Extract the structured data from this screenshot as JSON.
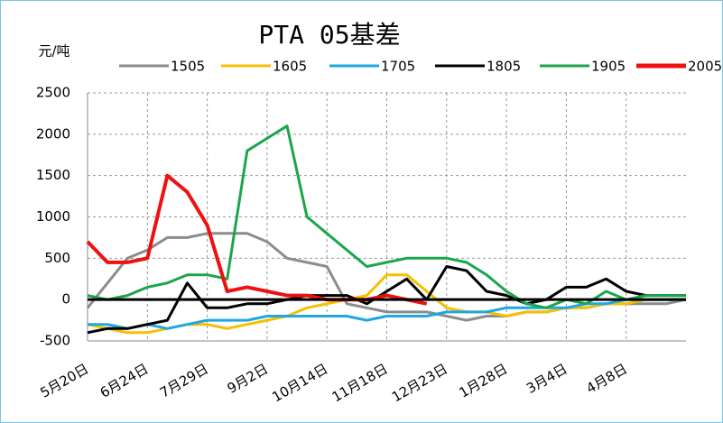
{
  "chart_data": {
    "type": "line",
    "title": "PTA 05基差",
    "y_label": "元/吨",
    "categories": [
      "5月20日",
      null,
      null,
      "6月24日",
      null,
      null,
      "7月29日",
      null,
      null,
      "9月2日",
      null,
      null,
      "10月14日",
      null,
      null,
      "11月18日",
      null,
      null,
      "12月23日",
      null,
      null,
      "1月28日",
      null,
      null,
      "3月4日",
      null,
      null,
      "4月8日",
      null,
      null,
      null
    ],
    "series": [
      {
        "name": "1505",
        "color": "#8c8c8c",
        "values": [
          -100,
          200,
          500,
          600,
          750,
          750,
          800,
          800,
          800,
          700,
          500,
          450,
          400,
          -50,
          -100,
          -150,
          -150,
          -150,
          -200,
          -250,
          -200,
          -200,
          -150,
          -150,
          -100,
          -100,
          -50,
          -50,
          -50,
          -50,
          0
        ]
      },
      {
        "name": "1605",
        "color": "#f5c000",
        "values": [
          -300,
          -350,
          -400,
          -400,
          -350,
          -300,
          -300,
          -350,
          -300,
          -250,
          -200,
          -100,
          -50,
          0,
          50,
          300,
          300,
          100,
          -100,
          -150,
          -150,
          -200,
          -150,
          -150,
          -100,
          -100,
          -50,
          -50,
          0,
          0,
          0
        ]
      },
      {
        "name": "1705",
        "color": "#1ea7e1",
        "values": [
          -300,
          -300,
          -350,
          -300,
          -350,
          -300,
          -250,
          -250,
          -250,
          -200,
          -200,
          -200,
          -200,
          -200,
          -250,
          -200,
          -200,
          -200,
          -150,
          -150,
          -150,
          -100,
          -100,
          -100,
          -100,
          -50,
          -50,
          0,
          0,
          0,
          0
        ]
      },
      {
        "name": "1805",
        "color": "#000000",
        "values": [
          -400,
          -350,
          -350,
          -300,
          -250,
          200,
          -100,
          -100,
          -50,
          -50,
          0,
          50,
          50,
          50,
          -50,
          100,
          250,
          0,
          400,
          350,
          100,
          50,
          -50,
          0,
          150,
          150,
          250,
          100,
          50,
          50,
          50
        ]
      },
      {
        "name": "1905",
        "color": "#1aa64a",
        "values": [
          50,
          0,
          50,
          150,
          200,
          300,
          300,
          250,
          1800,
          1950,
          2100,
          1000,
          800,
          600,
          400,
          450,
          500,
          500,
          500,
          450,
          300,
          100,
          -50,
          -100,
          0,
          -50,
          100,
          0,
          50,
          50,
          50
        ]
      },
      {
        "name": "2005",
        "color": "#ee1111",
        "values": [
          700,
          450,
          450,
          500,
          1500,
          1300,
          900,
          100,
          150,
          100,
          50,
          50,
          0,
          0,
          0,
          50,
          0,
          -50,
          null,
          null,
          null,
          null,
          null,
          null,
          null,
          null,
          null,
          null,
          null,
          null,
          null
        ]
      }
    ],
    "ylim": [
      -500,
      2500
    ],
    "yticks": [
      -500,
      0,
      500,
      1000,
      1500,
      2000,
      2500
    ],
    "grid": true,
    "legend": "top"
  }
}
